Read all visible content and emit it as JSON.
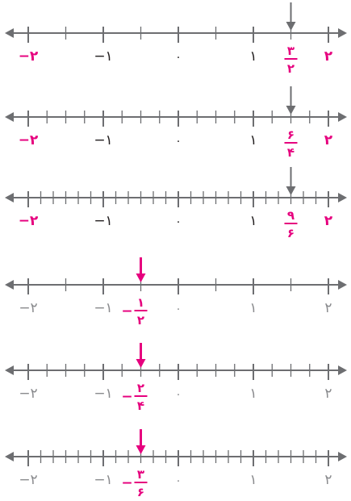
{
  "colors": {
    "axis": "#6d6e71",
    "label_dark": "#231f20",
    "label_faded": "#8a8b8e",
    "highlight": "#e6007e"
  },
  "lines": [
    {
      "id": "line-1",
      "subdivisions": 2,
      "arrow_value": 1.5,
      "arrow_color": "axis",
      "labels": [
        {
          "text": "−۲",
          "value": -2,
          "color": "highlight"
        },
        {
          "text": "−۱",
          "value": -1,
          "color": "label_dark"
        },
        {
          "text": "۰",
          "value": 0,
          "color": "label_dark"
        },
        {
          "text": "۱",
          "value": 1,
          "color": "label_dark"
        },
        {
          "text": "۲",
          "value": 2,
          "color": "highlight"
        }
      ],
      "fraction": {
        "value": 1.5,
        "sign": "",
        "numerator": "۳",
        "denominator": "۲",
        "color": "highlight"
      }
    },
    {
      "id": "line-2",
      "subdivisions": 4,
      "arrow_value": 1.5,
      "arrow_color": "axis",
      "labels": [
        {
          "text": "−۲",
          "value": -2,
          "color": "highlight"
        },
        {
          "text": "−۱",
          "value": -1,
          "color": "label_dark"
        },
        {
          "text": "۰",
          "value": 0,
          "color": "label_dark"
        },
        {
          "text": "۱",
          "value": 1,
          "color": "label_dark"
        },
        {
          "text": "۲",
          "value": 2,
          "color": "highlight"
        }
      ],
      "fraction": {
        "value": 1.5,
        "sign": "",
        "numerator": "۶",
        "denominator": "۴",
        "color": "highlight"
      }
    },
    {
      "id": "line-3",
      "subdivisions": 6,
      "arrow_value": 1.5,
      "arrow_color": "axis",
      "labels": [
        {
          "text": "−۲",
          "value": -2,
          "color": "highlight"
        },
        {
          "text": "−۱",
          "value": -1,
          "color": "label_dark"
        },
        {
          "text": "۰",
          "value": 0,
          "color": "label_dark"
        },
        {
          "text": "۱",
          "value": 1,
          "color": "label_dark"
        },
        {
          "text": "۲",
          "value": 2,
          "color": "highlight"
        }
      ],
      "fraction": {
        "value": 1.5,
        "sign": "",
        "numerator": "۹",
        "denominator": "۶",
        "color": "highlight"
      }
    },
    {
      "id": "line-4",
      "subdivisions": 2,
      "arrow_value": -0.5,
      "arrow_color": "highlight",
      "labels": [
        {
          "text": "−۲",
          "value": -2,
          "color": "label_faded"
        },
        {
          "text": "−۱",
          "value": -1,
          "color": "label_faded"
        },
        {
          "text": "۰",
          "value": 0,
          "color": "label_faded"
        },
        {
          "text": "۱",
          "value": 1,
          "color": "label_faded"
        },
        {
          "text": "۲",
          "value": 2,
          "color": "label_faded"
        }
      ],
      "fraction": {
        "value": -0.5,
        "sign": "−",
        "numerator": "۱",
        "denominator": "۲",
        "color": "highlight"
      }
    },
    {
      "id": "line-5",
      "subdivisions": 4,
      "arrow_value": -0.5,
      "arrow_color": "highlight",
      "labels": [
        {
          "text": "−۲",
          "value": -2,
          "color": "label_faded"
        },
        {
          "text": "−۱",
          "value": -1,
          "color": "label_faded"
        },
        {
          "text": "۰",
          "value": 0,
          "color": "label_faded"
        },
        {
          "text": "۱",
          "value": 1,
          "color": "label_faded"
        },
        {
          "text": "۲",
          "value": 2,
          "color": "label_faded"
        }
      ],
      "fraction": {
        "value": -0.5,
        "sign": "−",
        "numerator": "۲",
        "denominator": "۴",
        "color": "highlight"
      }
    },
    {
      "id": "line-6",
      "subdivisions": 6,
      "arrow_value": -0.5,
      "arrow_color": "highlight",
      "labels": [
        {
          "text": "−۲",
          "value": -2,
          "color": "label_faded"
        },
        {
          "text": "−۱",
          "value": -1,
          "color": "label_faded"
        },
        {
          "text": "۰",
          "value": 0,
          "color": "label_faded"
        },
        {
          "text": "۱",
          "value": 1,
          "color": "label_faded"
        },
        {
          "text": "۲",
          "value": 2,
          "color": "label_faded"
        }
      ],
      "fraction": {
        "value": -0.5,
        "sign": "−",
        "numerator": "۳",
        "denominator": "۶",
        "color": "highlight"
      }
    }
  ]
}
